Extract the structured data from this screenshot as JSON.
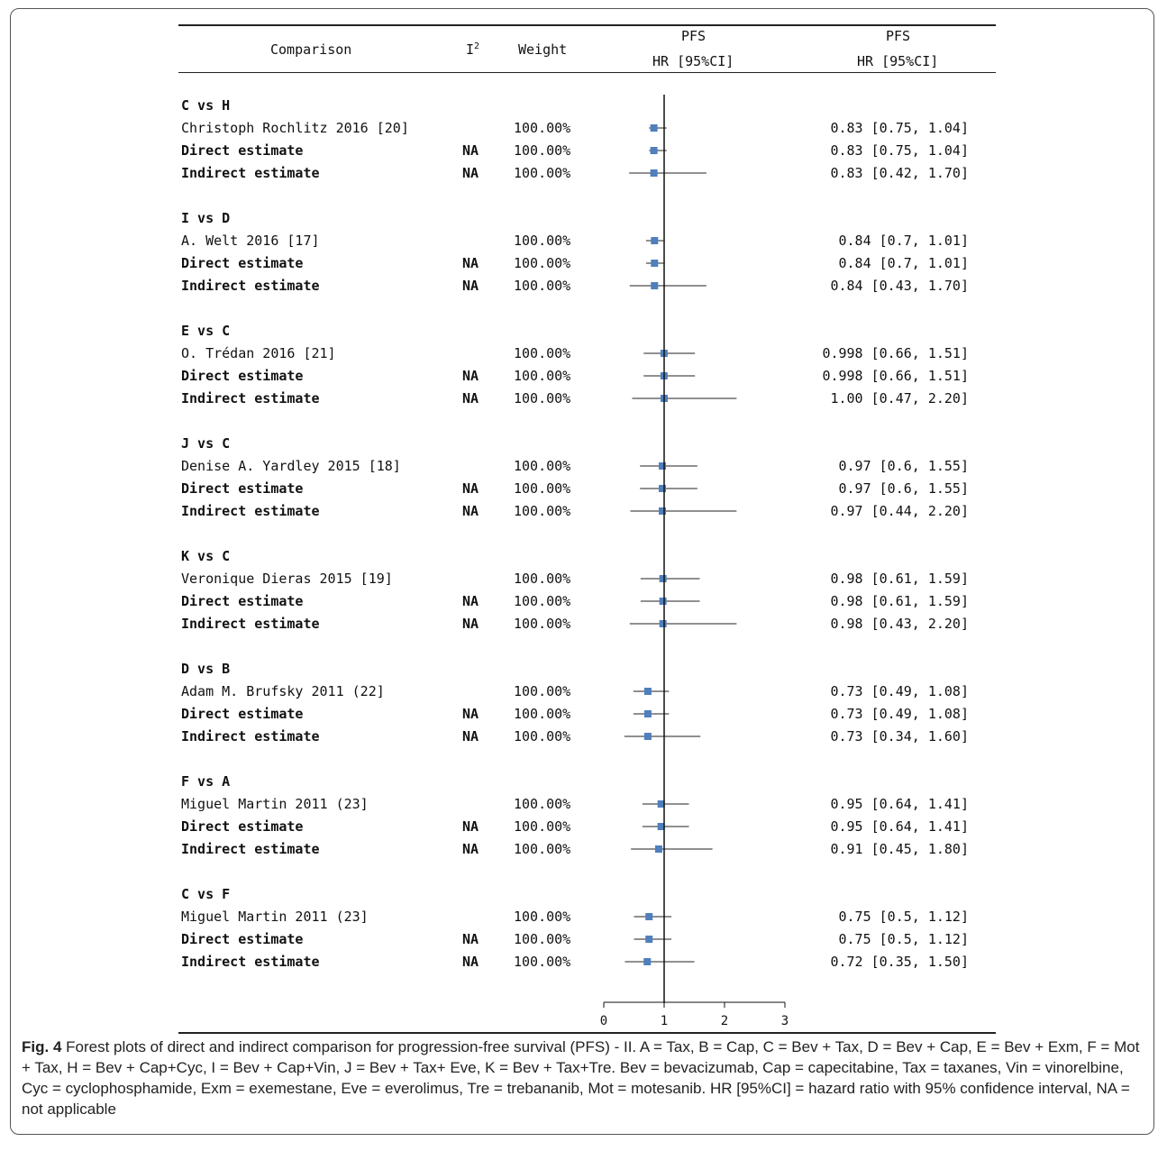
{
  "table": {
    "headers": {
      "comparison": "Comparison",
      "i2": "I",
      "i2_sup": "2",
      "weight": "Weight",
      "pfs1_line1": "PFS",
      "pfs1_line2": "HR [95%CI]",
      "pfs2_line1": "PFS",
      "pfs2_line2": "HR [95%CI]"
    }
  },
  "chart_data": {
    "type": "forest",
    "xlim": [
      0,
      3
    ],
    "xticks": [
      "0",
      "1",
      "2",
      "3"
    ],
    "reference_line": 1,
    "marker_color": "#4f7fbd",
    "groups": [
      {
        "title": "C vs H",
        "rows": [
          {
            "label": "Christoph Rochlitz 2016 [20]",
            "i2": "",
            "weight": "100.00%",
            "hr": 0.83,
            "lo": 0.75,
            "hi": 1.04,
            "text": "0.83 [0.75, 1.04]",
            "bold": false
          },
          {
            "label": "Direct estimate",
            "i2": "NA",
            "weight": "100.00%",
            "hr": 0.83,
            "lo": 0.75,
            "hi": 1.04,
            "text": "0.83 [0.75, 1.04]",
            "bold": true
          },
          {
            "label": "Indirect estimate",
            "i2": "NA",
            "weight": "100.00%",
            "hr": 0.83,
            "lo": 0.42,
            "hi": 1.7,
            "text": "0.83 [0.42, 1.70]",
            "bold": true
          }
        ]
      },
      {
        "title": "I vs D",
        "rows": [
          {
            "label": "A. Welt 2016 [17]",
            "i2": "",
            "weight": "100.00%",
            "hr": 0.84,
            "lo": 0.7,
            "hi": 1.01,
            "text": "0.84 [0.7, 1.01]",
            "bold": false
          },
          {
            "label": "Direct estimate",
            "i2": "NA",
            "weight": "100.00%",
            "hr": 0.84,
            "lo": 0.7,
            "hi": 1.01,
            "text": "0.84 [0.7, 1.01]",
            "bold": true
          },
          {
            "label": "Indirect estimate",
            "i2": "NA",
            "weight": "100.00%",
            "hr": 0.84,
            "lo": 0.43,
            "hi": 1.7,
            "text": "0.84 [0.43, 1.70]",
            "bold": true
          }
        ]
      },
      {
        "title": "E vs C",
        "rows": [
          {
            "label": "O. Trédan 2016 [21]",
            "i2": "",
            "weight": "100.00%",
            "hr": 0.998,
            "lo": 0.66,
            "hi": 1.51,
            "text": "0.998 [0.66, 1.51]",
            "bold": false
          },
          {
            "label": "Direct estimate",
            "i2": "NA",
            "weight": "100.00%",
            "hr": 0.998,
            "lo": 0.66,
            "hi": 1.51,
            "text": "0.998 [0.66, 1.51]",
            "bold": true
          },
          {
            "label": "Indirect estimate",
            "i2": "NA",
            "weight": "100.00%",
            "hr": 1.0,
            "lo": 0.47,
            "hi": 2.2,
            "text": "1.00 [0.47, 2.20]",
            "bold": true
          }
        ]
      },
      {
        "title": "J vs C",
        "rows": [
          {
            "label": "Denise A. Yardley 2015 [18]",
            "i2": "",
            "weight": "100.00%",
            "hr": 0.97,
            "lo": 0.6,
            "hi": 1.55,
            "text": "0.97 [0.6, 1.55]",
            "bold": false
          },
          {
            "label": "Direct estimate",
            "i2": "NA",
            "weight": "100.00%",
            "hr": 0.97,
            "lo": 0.6,
            "hi": 1.55,
            "text": "0.97 [0.6, 1.55]",
            "bold": true
          },
          {
            "label": "Indirect estimate",
            "i2": "NA",
            "weight": "100.00%",
            "hr": 0.97,
            "lo": 0.44,
            "hi": 2.2,
            "text": "0.97 [0.44, 2.20]",
            "bold": true
          }
        ]
      },
      {
        "title": "K vs C",
        "rows": [
          {
            "label": "Veronique Dieras 2015 [19]",
            "i2": "",
            "weight": "100.00%",
            "hr": 0.98,
            "lo": 0.61,
            "hi": 1.59,
            "text": "0.98 [0.61, 1.59]",
            "bold": false
          },
          {
            "label": "Direct estimate",
            "i2": "NA",
            "weight": "100.00%",
            "hr": 0.98,
            "lo": 0.61,
            "hi": 1.59,
            "text": "0.98 [0.61, 1.59]",
            "bold": true
          },
          {
            "label": "Indirect estimate",
            "i2": "NA",
            "weight": "100.00%",
            "hr": 0.98,
            "lo": 0.43,
            "hi": 2.2,
            "text": "0.98 [0.43, 2.20]",
            "bold": true
          }
        ]
      },
      {
        "title": "D vs B",
        "rows": [
          {
            "label": "Adam M. Brufsky 2011 (22]",
            "i2": "",
            "weight": "100.00%",
            "hr": 0.73,
            "lo": 0.49,
            "hi": 1.08,
            "text": "0.73 [0.49, 1.08]",
            "bold": false
          },
          {
            "label": "Direct estimate",
            "i2": "NA",
            "weight": "100.00%",
            "hr": 0.73,
            "lo": 0.49,
            "hi": 1.08,
            "text": "0.73 [0.49, 1.08]",
            "bold": true
          },
          {
            "label": "Indirect estimate",
            "i2": "NA",
            "weight": "100.00%",
            "hr": 0.73,
            "lo": 0.34,
            "hi": 1.6,
            "text": "0.73 [0.34, 1.60]",
            "bold": true
          }
        ]
      },
      {
        "title": "F vs A",
        "rows": [
          {
            "label": "Miguel Martin 2011 (23]",
            "i2": "",
            "weight": "100.00%",
            "hr": 0.95,
            "lo": 0.64,
            "hi": 1.41,
            "text": "0.95 [0.64, 1.41]",
            "bold": false
          },
          {
            "label": "Direct estimate",
            "i2": "NA",
            "weight": "100.00%",
            "hr": 0.95,
            "lo": 0.64,
            "hi": 1.41,
            "text": "0.95 [0.64, 1.41]",
            "bold": true
          },
          {
            "label": "Indirect estimate",
            "i2": "NA",
            "weight": "100.00%",
            "hr": 0.91,
            "lo": 0.45,
            "hi": 1.8,
            "text": "0.91 [0.45, 1.80]",
            "bold": true
          }
        ]
      },
      {
        "title": "C vs F",
        "rows": [
          {
            "label": "Miguel Martin 2011 (23]",
            "i2": "",
            "weight": "100.00%",
            "hr": 0.75,
            "lo": 0.5,
            "hi": 1.12,
            "text": "0.75 [0.5, 1.12]",
            "bold": false
          },
          {
            "label": "Direct estimate",
            "i2": "NA",
            "weight": "100.00%",
            "hr": 0.75,
            "lo": 0.5,
            "hi": 1.12,
            "text": "0.75 [0.5, 1.12]",
            "bold": true
          },
          {
            "label": "Indirect estimate",
            "i2": "NA",
            "weight": "100.00%",
            "hr": 0.72,
            "lo": 0.35,
            "hi": 1.5,
            "text": "0.72 [0.35, 1.50]",
            "bold": true
          }
        ]
      }
    ]
  },
  "caption": {
    "label": "Fig. 4",
    "text": " Forest plots of direct and indirect comparison for progression-free survival (PFS) - II. A = Tax, B = Cap, C = Bev + Tax, D = Bev + Cap, E = Bev + Exm, F = Mot + Tax, H = Bev + Cap+Cyc, I = Bev + Cap+Vin, J = Bev + Tax+ Eve, K = Bev + Tax+Tre. Bev = bevacizumab, Cap = capecitabine, Tax = taxanes, Vin = vinorelbine, Cyc = cyclophosphamide, Exm = exemestane, Eve = everolimus, Tre = trebananib, Mot = motesanib. HR [95%CI] = hazard ratio with 95% confidence interval, NA = not applicable"
  }
}
